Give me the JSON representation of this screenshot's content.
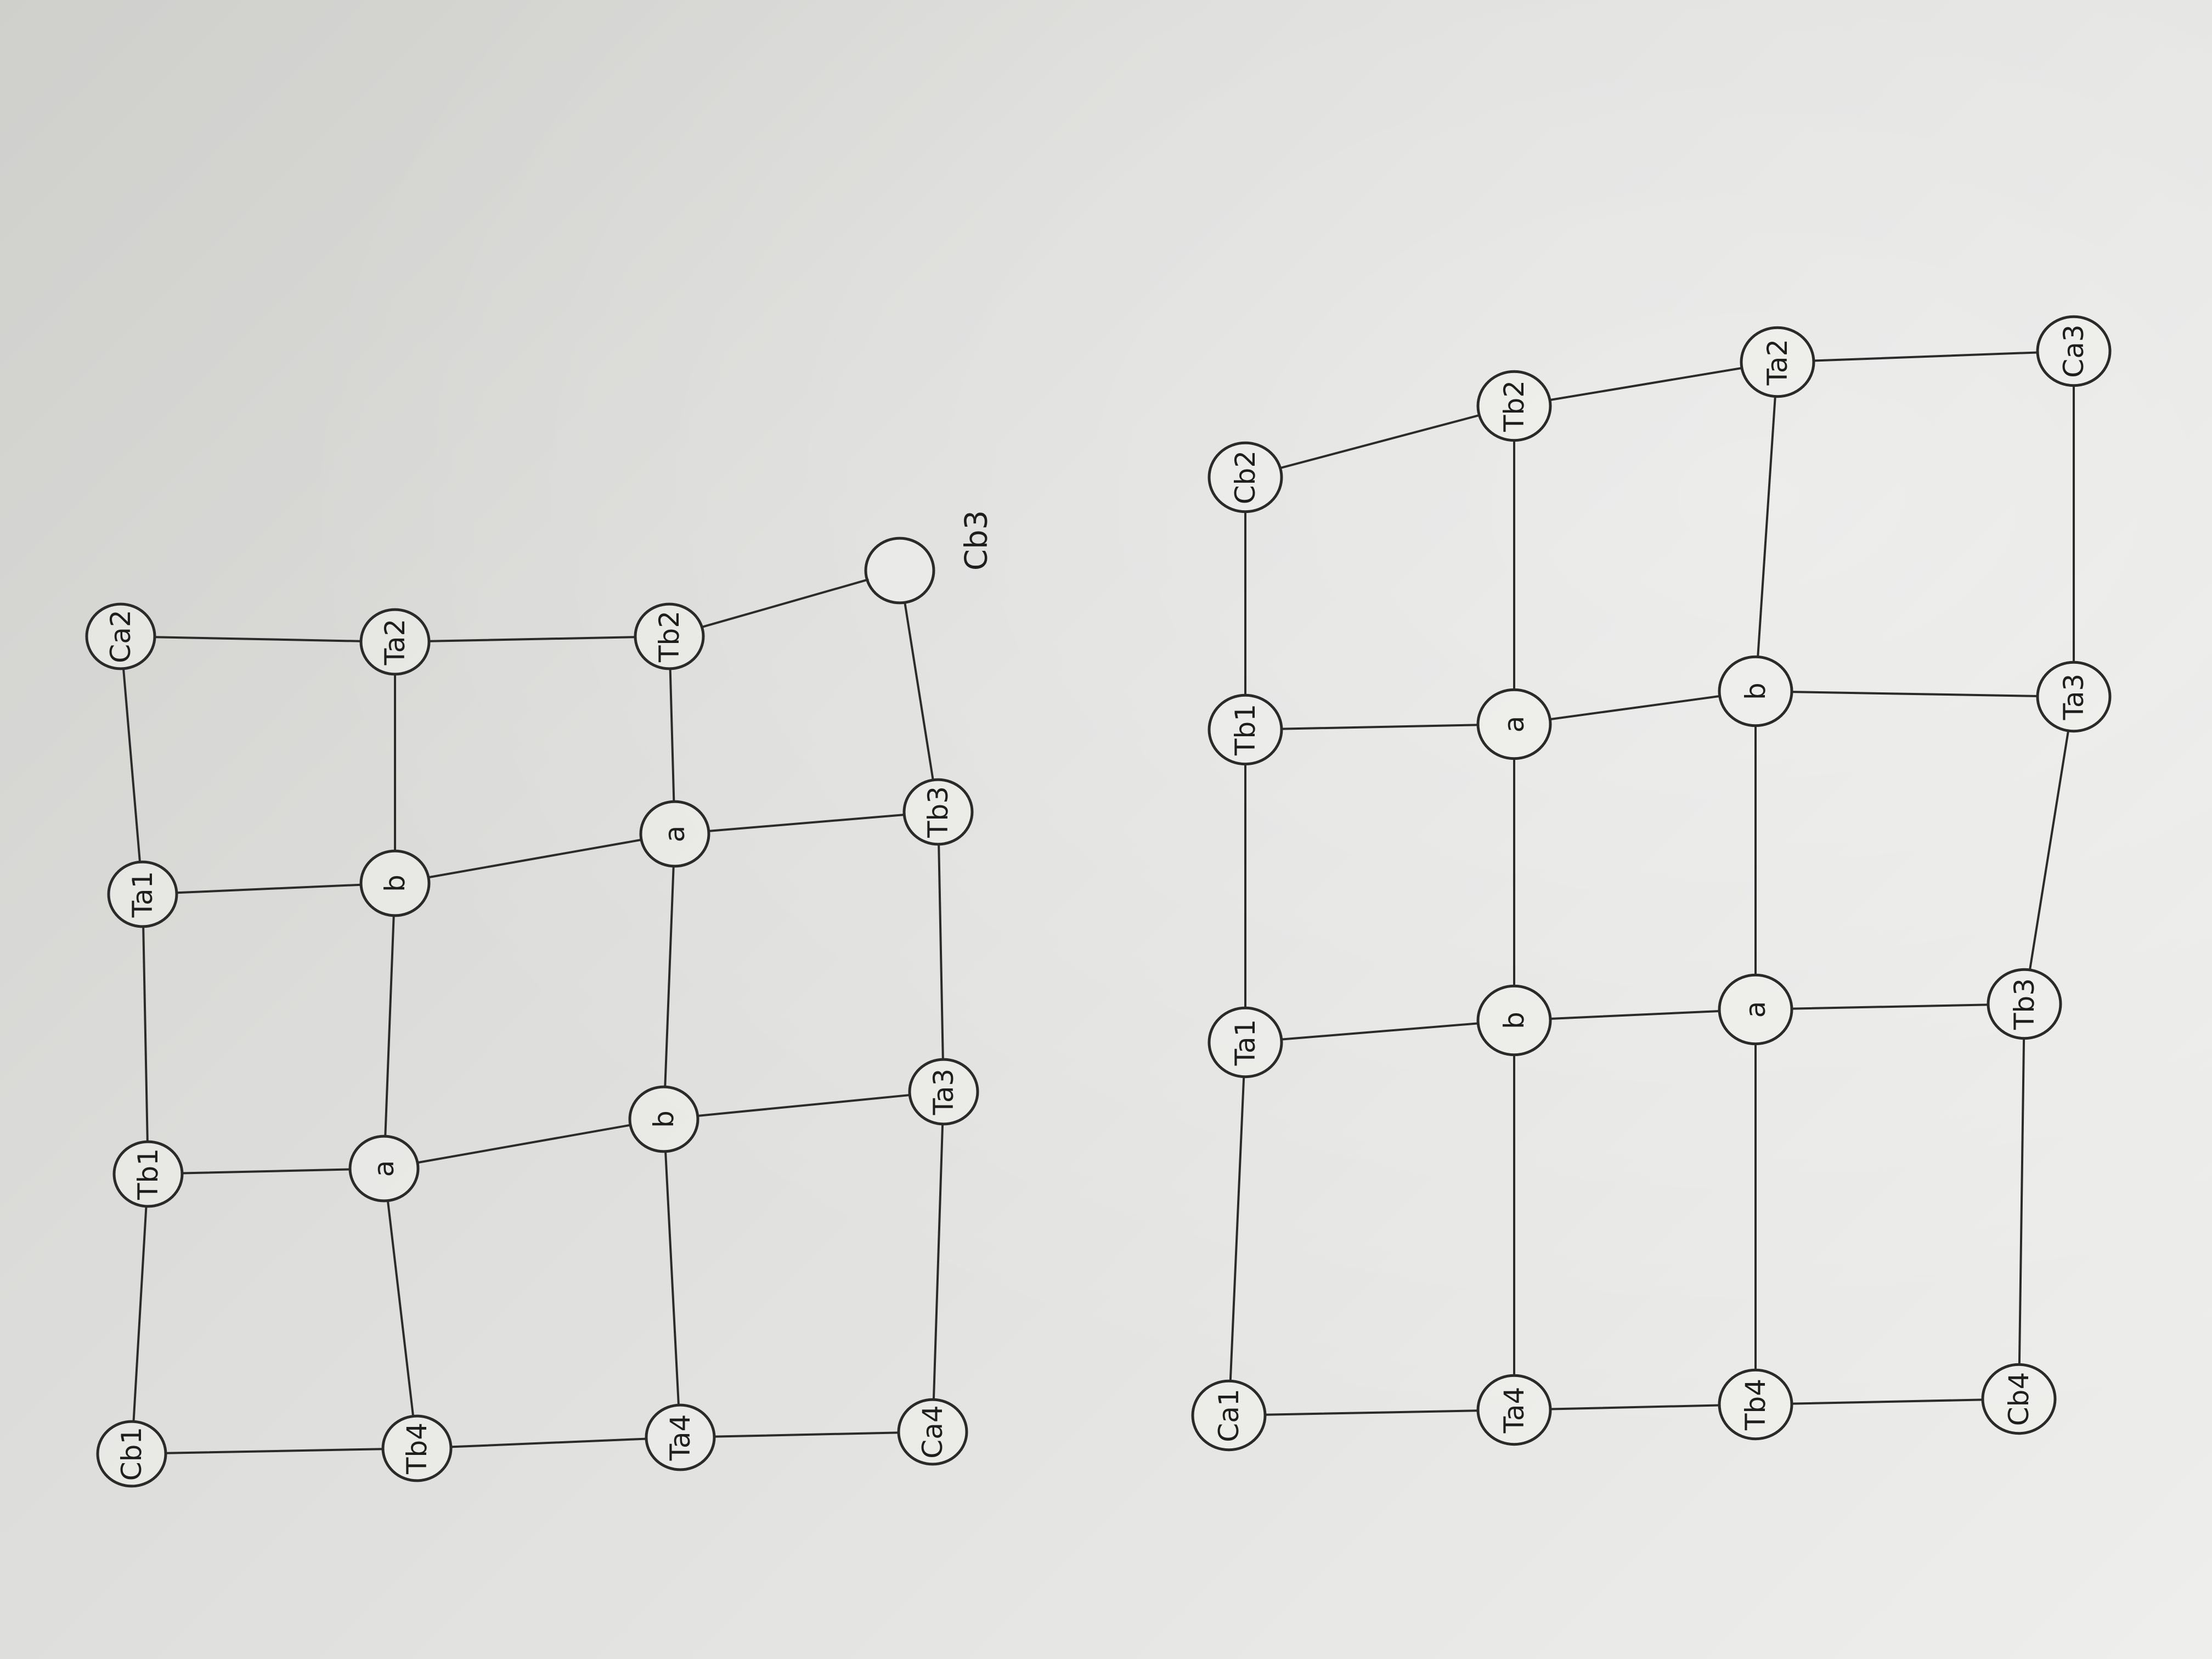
{
  "ink_color": "#2a2a2a",
  "paper_color": "#dcdcda",
  "note": "Hand-drawn graphs on paper; photo is rotated 90 degrees. Node labels read as written.",
  "graphs": [
    {
      "name": "upper-graph",
      "nodes": [
        {
          "id": "Cb1",
          "label": "Cb1"
        },
        {
          "id": "Tb1",
          "label": "Tb1"
        },
        {
          "id": "Ta1",
          "label": "Ta1"
        },
        {
          "id": "Ca2",
          "label": "Ca2"
        },
        {
          "id": "Tb4",
          "label": "Tb4"
        },
        {
          "id": "a1",
          "label": "a"
        },
        {
          "id": "b1",
          "label": "b"
        },
        {
          "id": "Ta2",
          "label": "Ta2"
        },
        {
          "id": "Ta4",
          "label": "Ta4"
        },
        {
          "id": "b2",
          "label": "b"
        },
        {
          "id": "a2",
          "label": "a"
        },
        {
          "id": "Tb2",
          "label": "Tb2"
        },
        {
          "id": "Ca4",
          "label": "Ca4"
        },
        {
          "id": "Ta3",
          "label": "Ta3"
        },
        {
          "id": "Tb3",
          "label": "Tb3"
        },
        {
          "id": "Cb3",
          "label": "Cb3"
        }
      ]
    },
    {
      "name": "lower-graph",
      "nodes": [
        {
          "id": "Ca1",
          "label": "Ca1"
        },
        {
          "id": "Ta1",
          "label": "Ta1"
        },
        {
          "id": "Tb1",
          "label": "Tb1"
        },
        {
          "id": "Cb2",
          "label": "Cb2"
        },
        {
          "id": "Ta4",
          "label": "Ta4"
        },
        {
          "id": "b1",
          "label": "b"
        },
        {
          "id": "a1",
          "label": "a"
        },
        {
          "id": "Tb2",
          "label": "Tb2"
        },
        {
          "id": "Tb4",
          "label": "Tb4"
        },
        {
          "id": "a2",
          "label": "a"
        },
        {
          "id": "b2",
          "label": "b"
        },
        {
          "id": "Ta2",
          "label": "Ta2"
        },
        {
          "id": "Cb4",
          "label": "Cb4"
        },
        {
          "id": "Tb3",
          "label": "Tb3"
        },
        {
          "id": "Ta3",
          "label": "Ta3"
        },
        {
          "id": "Ca3",
          "label": "Ca3"
        }
      ]
    }
  ]
}
